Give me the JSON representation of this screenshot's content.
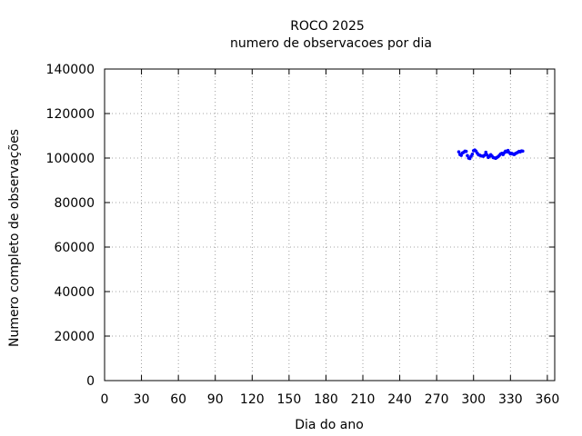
{
  "chart_data": {
    "type": "scatter",
    "title": "ROCO 2025",
    "subtitle": "numero de observacoes por dia",
    "xlabel": "Dia do ano",
    "ylabel": "Numero completo de observações",
    "xlim": [
      0,
      366
    ],
    "ylim": [
      0,
      140000
    ],
    "xticks": [
      0,
      30,
      60,
      90,
      120,
      150,
      180,
      210,
      240,
      270,
      300,
      330,
      360
    ],
    "yticks": [
      0,
      20000,
      40000,
      60000,
      80000,
      100000,
      120000,
      140000
    ],
    "grid": true,
    "point_color": "#0000ff",
    "series": [
      {
        "x": [
          288,
          289,
          290,
          291,
          292,
          293,
          294,
          295,
          296,
          297,
          298,
          299,
          300,
          301,
          302,
          303,
          304,
          305,
          306,
          307,
          308,
          309,
          310,
          311,
          312,
          313,
          314,
          315,
          316,
          317,
          318,
          319,
          320,
          321,
          322,
          323,
          324,
          325,
          326,
          327,
          328,
          329,
          330,
          331,
          332,
          333,
          334,
          335,
          336,
          337,
          338,
          339,
          340
        ],
        "y": [
          102800,
          101600,
          101200,
          102300,
          102600,
          103100,
          103000,
          101100,
          100000,
          99800,
          100800,
          101700,
          103300,
          103600,
          103100,
          102200,
          101500,
          101300,
          101000,
          100900,
          100800,
          101300,
          102600,
          101400,
          100300,
          100800,
          101500,
          100900,
          100200,
          100100,
          99900,
          100300,
          100600,
          101200,
          101800,
          102100,
          101600,
          102400,
          103100,
          102800,
          103400,
          102500,
          101900,
          102100,
          101800,
          101600,
          102000,
          102300,
          102600,
          103000,
          102800,
          103200,
          103100
        ]
      }
    ]
  }
}
